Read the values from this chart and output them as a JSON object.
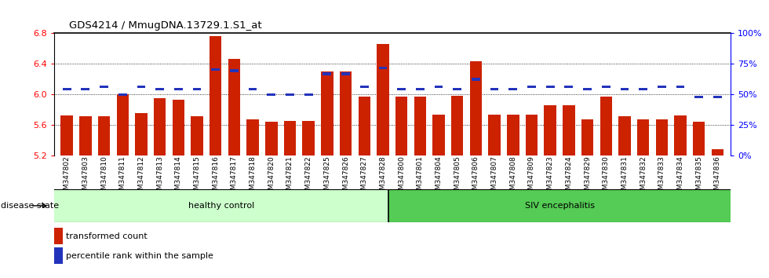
{
  "title": "GDS4214 / MmugDNA.13729.1.S1_at",
  "samples": [
    "GSM347802",
    "GSM347803",
    "GSM347810",
    "GSM347811",
    "GSM347812",
    "GSM347813",
    "GSM347814",
    "GSM347815",
    "GSM347816",
    "GSM347817",
    "GSM347818",
    "GSM347820",
    "GSM347821",
    "GSM347822",
    "GSM347825",
    "GSM347826",
    "GSM347827",
    "GSM347828",
    "GSM347800",
    "GSM347801",
    "GSM347804",
    "GSM347805",
    "GSM347806",
    "GSM347807",
    "GSM347808",
    "GSM347809",
    "GSM347823",
    "GSM347824",
    "GSM347829",
    "GSM347830",
    "GSM347831",
    "GSM347832",
    "GSM347833",
    "GSM347834",
    "GSM347835",
    "GSM347836"
  ],
  "bar_values": [
    5.73,
    5.72,
    5.72,
    6.0,
    5.76,
    5.95,
    5.93,
    5.72,
    6.76,
    6.47,
    5.68,
    5.64,
    5.65,
    5.65,
    6.3,
    6.3,
    5.97,
    6.66,
    5.97,
    5.97,
    5.74,
    5.98,
    6.44,
    5.74,
    5.74,
    5.74,
    5.86,
    5.86,
    5.67,
    5.97,
    5.72,
    5.67,
    5.68,
    5.73,
    5.64,
    5.28
  ],
  "percentile_values": [
    6.07,
    6.07,
    6.1,
    6.0,
    6.1,
    6.07,
    6.07,
    6.07,
    6.33,
    6.31,
    6.07,
    6.0,
    6.0,
    6.0,
    6.27,
    6.27,
    6.1,
    6.35,
    6.07,
    6.07,
    6.1,
    6.07,
    6.2,
    6.07,
    6.07,
    6.1,
    6.1,
    6.1,
    6.07,
    6.1,
    6.07,
    6.07,
    6.1,
    6.1,
    5.97,
    5.97
  ],
  "ylim": [
    5.2,
    6.8
  ],
  "yticks": [
    5.2,
    5.6,
    6.0,
    6.4,
    6.8
  ],
  "right_ytick_labels": [
    "0%",
    "25%",
    "50%",
    "75%",
    "100%"
  ],
  "right_ytick_vals": [
    0,
    25,
    50,
    75,
    100
  ],
  "bar_color": "#cc2200",
  "percentile_color": "#2233bb",
  "healthy_count": 18,
  "label_healthy": "healthy control",
  "label_siv": "SIV encephalitis",
  "label_disease": "disease state",
  "legend_bar": "transformed count",
  "legend_pct": "percentile rank within the sample",
  "healthy_bg": "#ccffcc",
  "siv_bg": "#55cc55",
  "tick_label_fontsize": 6.5,
  "bar_width": 0.65
}
